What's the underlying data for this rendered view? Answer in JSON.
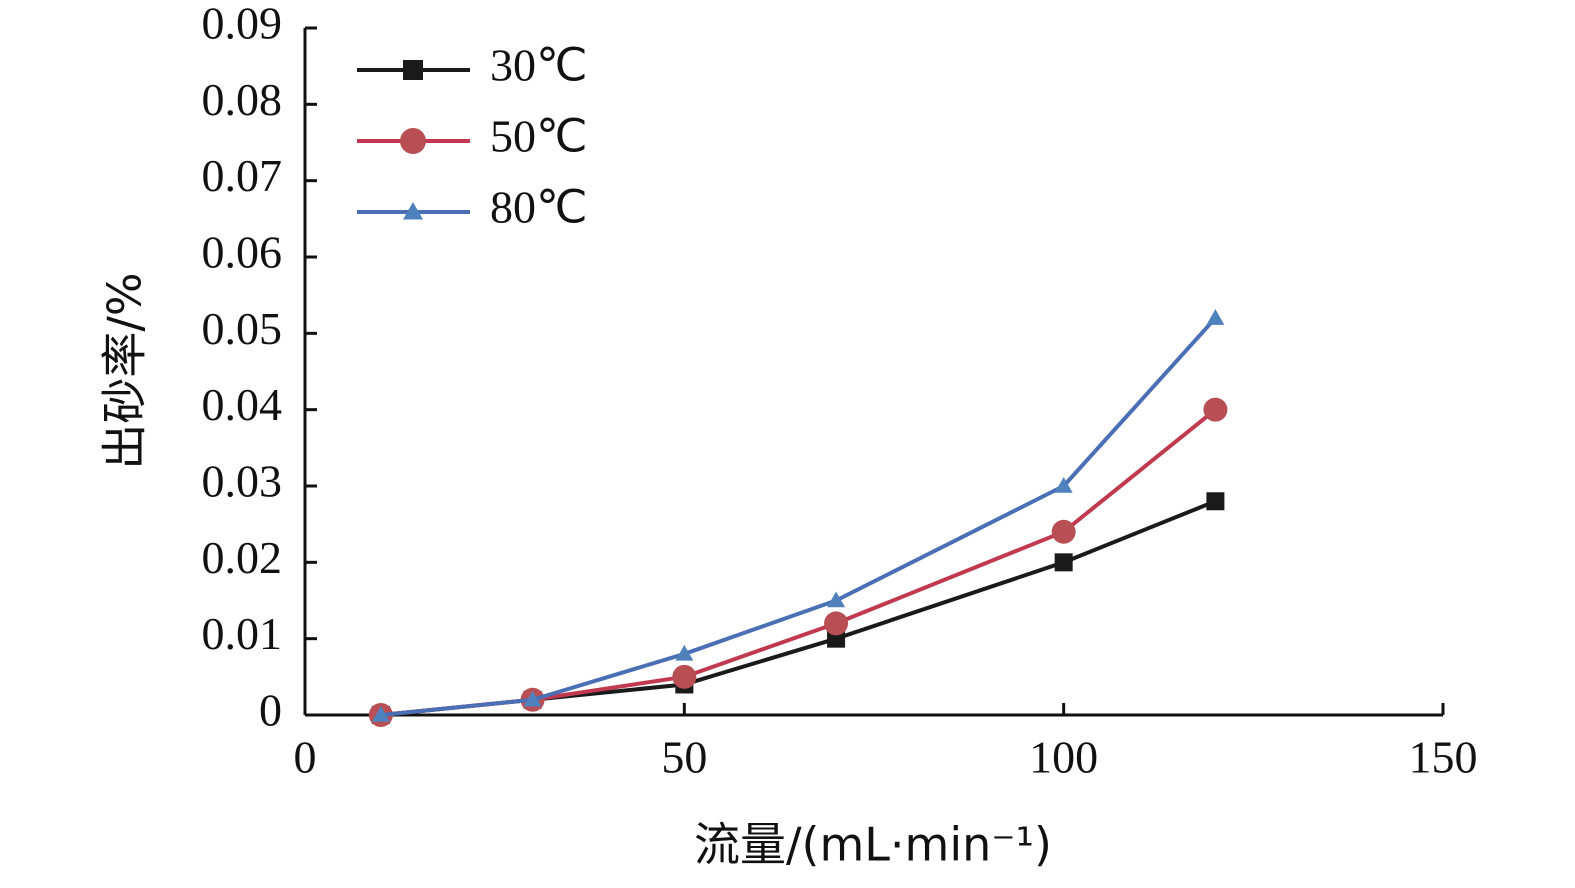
{
  "chart_data": {
    "type": "line",
    "xlabel": "流量/(mL·min⁻¹)",
    "ylabel": "出砂率/%",
    "xlim": [
      0,
      150
    ],
    "ylim": [
      0,
      0.09
    ],
    "xticks": [
      "0",
      "50",
      "100",
      "150"
    ],
    "yticks": [
      "0",
      "0.01",
      "0.02",
      "0.03",
      "0.04",
      "0.05",
      "0.06",
      "0.07",
      "0.08",
      "0.09"
    ],
    "grid": false,
    "legend_position": "top-left",
    "series": [
      {
        "name": "30℃",
        "marker": "square",
        "color": "#1a1a1a",
        "x": [
          10,
          30,
          50,
          70,
          100,
          120
        ],
        "y": [
          0,
          0.002,
          0.004,
          0.01,
          0.02,
          0.028
        ]
      },
      {
        "name": "50℃",
        "marker": "circle",
        "color": "#c0394f",
        "marker_color": "#b84f55",
        "x": [
          10,
          30,
          50,
          70,
          100,
          120
        ],
        "y": [
          0,
          0.002,
          0.005,
          0.012,
          0.024,
          0.04
        ]
      },
      {
        "name": "80℃",
        "marker": "triangle",
        "color": "#4a6fb5",
        "marker_color": "#4f81bd",
        "x": [
          10,
          30,
          50,
          70,
          100,
          120
        ],
        "y": [
          0,
          0.002,
          0.008,
          0.015,
          0.03,
          0.052
        ]
      }
    ]
  }
}
